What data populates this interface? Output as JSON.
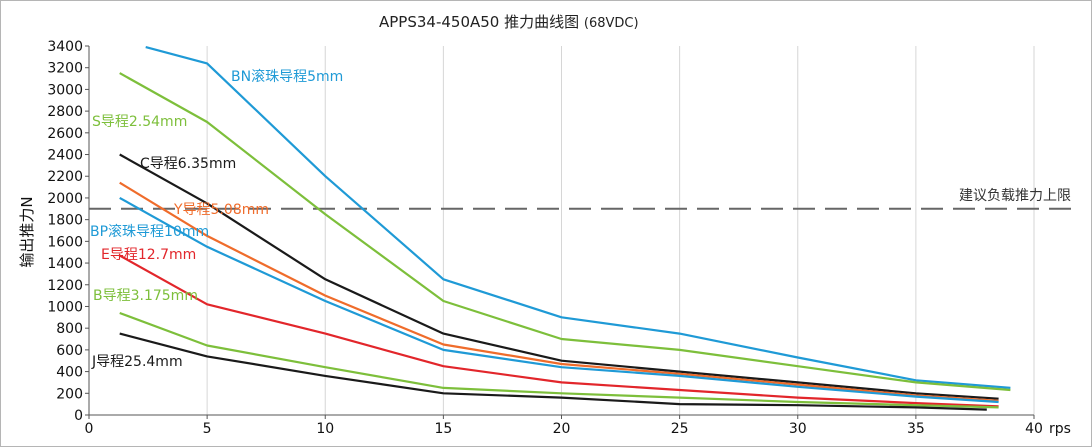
{
  "chart_data": {
    "type": "line",
    "title": "APPS34-450A50  推力曲线图",
    "title_suffix": "(68VDC)",
    "xlabel": "",
    "x_unit": "rps",
    "ylabel": "输出推力N",
    "xlim": [
      0,
      40
    ],
    "ylim": [
      0,
      3400
    ],
    "x_ticks": [
      0,
      5,
      10,
      15,
      20,
      25,
      30,
      35,
      40
    ],
    "y_ticks": [
      0,
      200,
      400,
      600,
      800,
      1000,
      1200,
      1400,
      1600,
      1800,
      2000,
      2200,
      2400,
      2600,
      2800,
      3000,
      3200,
      3400
    ],
    "grid": "vertical",
    "reference_line": {
      "label": "建议负载推力上限",
      "value": 1900,
      "color": "#666666",
      "style": "dashed"
    },
    "series": [
      {
        "name": "BN滚珠导程5mm",
        "color": "#1f9ad6",
        "x": [
          2.4,
          5,
          10,
          15,
          20,
          25,
          30,
          35,
          39
        ],
        "y": [
          3390,
          3240,
          2200,
          1250,
          900,
          750,
          530,
          320,
          250
        ]
      },
      {
        "name": "S导程2.54mm",
        "color": "#7dbf3b",
        "x": [
          1.3,
          5,
          10,
          15,
          20,
          25,
          30,
          35,
          39
        ],
        "y": [
          3150,
          2700,
          1850,
          1050,
          700,
          600,
          450,
          300,
          230
        ]
      },
      {
        "name": "C导程6.35mm",
        "color": "#1a1a1a",
        "x": [
          1.3,
          5,
          10,
          15,
          20,
          25,
          30,
          35,
          38.5
        ],
        "y": [
          2400,
          1950,
          1250,
          750,
          500,
          400,
          300,
          200,
          150
        ]
      },
      {
        "name": "Y导程5.08mm",
        "color": "#ef6c2b",
        "x": [
          1.3,
          5,
          10,
          15,
          20,
          25,
          30,
          35,
          38.5
        ],
        "y": [
          2140,
          1650,
          1100,
          650,
          470,
          380,
          280,
          180,
          130
        ]
      },
      {
        "name": "BP滚珠导程10mm",
        "color": "#1f9ad6",
        "x": [
          1.3,
          5,
          10,
          15,
          20,
          25,
          30,
          35,
          38.5
        ],
        "y": [
          2000,
          1550,
          1050,
          600,
          440,
          360,
          260,
          170,
          120
        ]
      },
      {
        "name": "E导程12.7mm",
        "color": "#e2262b",
        "x": [
          1.3,
          5,
          10,
          15,
          20,
          25,
          30,
          35,
          38.5
        ],
        "y": [
          1470,
          1020,
          750,
          450,
          300,
          230,
          160,
          110,
          80
        ]
      },
      {
        "name": "B导程3.175mm",
        "color": "#7dbf3b",
        "x": [
          1.3,
          5,
          10,
          15,
          20,
          25,
          30,
          35,
          38.5
        ],
        "y": [
          940,
          640,
          440,
          250,
          200,
          160,
          120,
          90,
          70
        ]
      },
      {
        "name": "J导程25.4mm",
        "color": "#1a1a1a",
        "x": [
          1.3,
          5,
          10,
          15,
          20,
          25,
          30,
          35,
          38
        ],
        "y": [
          750,
          540,
          360,
          200,
          160,
          100,
          90,
          70,
          50
        ]
      }
    ]
  }
}
